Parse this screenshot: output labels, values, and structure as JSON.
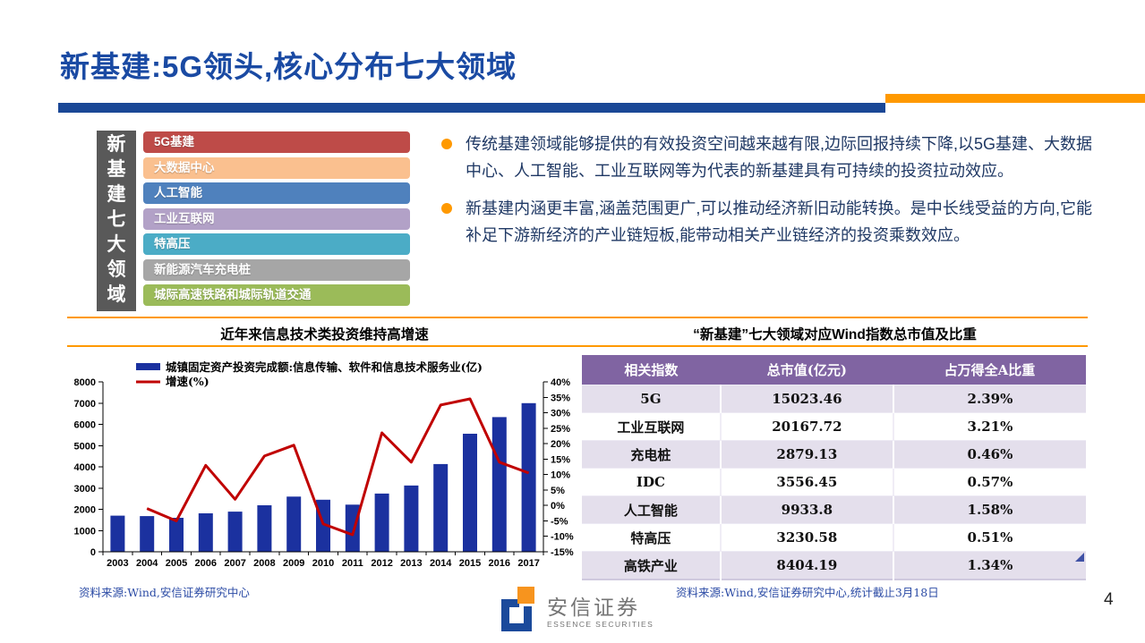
{
  "slide": {
    "title": "新基建:5G领头,核心分布七大领域",
    "page_number": "4"
  },
  "colors": {
    "title_blue": "#1A4AA3",
    "rule_blue": "#1A4796",
    "accent_orange": "#FF9900",
    "body_text_blue": "#1F3864",
    "sidebar_gray": "#595959",
    "chart_bar_blue": "#1B319F",
    "chart_line_red": "#C00000",
    "table_header_purple": "#8064A2",
    "table_row_lavender": "#E4DFEC",
    "logo_blue": "#1B4A9B",
    "logo_orange": "#F7941E"
  },
  "areas": {
    "sidebar_label": "新基建七大领域",
    "items": [
      {
        "label": "5G基建",
        "color": "#BE4B48"
      },
      {
        "label": "大数据中心",
        "color": "#FAC08F"
      },
      {
        "label": "人工智能",
        "color": "#4F81BD"
      },
      {
        "label": "工业互联网",
        "color": "#B2A1C7"
      },
      {
        "label": "特高压",
        "color": "#4BACC6"
      },
      {
        "label": "新能源汽车充电桩",
        "color": "#A6A6A6"
      },
      {
        "label": "城际高速铁路和城际轨道交通",
        "color": "#9BBB59"
      }
    ]
  },
  "bullets": [
    "传统基建领域能够提供的有效投资空间越来越有限,边际回报持续下降,以5G基建、大数据中心、人工智能、工业互联网等为代表的新基建具有可持续的投资拉动效应。",
    "新基建内涵更丰富,涵盖范围更广,可以推动经济新旧动能转换。是中长线受益的方向,它能补足下游新经济的产业链短板,能带动相关产业链经济的投资乘数效应。"
  ],
  "sections": {
    "left_title": "近年来信息技术类投资维持高增速",
    "right_title": "“新基建”七大领域对应Wind指数总市值及比重"
  },
  "chart_data": {
    "type": "bar+line",
    "title": "近年来信息技术类投资维持高增速",
    "categories": [
      "2003",
      "2004",
      "2005",
      "2006",
      "2007",
      "2008",
      "2009",
      "2010",
      "2011",
      "2012",
      "2013",
      "2014",
      "2015",
      "2016",
      "2017"
    ],
    "series": [
      {
        "name": "城镇固定资产投资完成额:信息传输、软件和信息技术服务业(亿)",
        "type": "bar",
        "axis": "left",
        "color": "#1B319F",
        "values": [
          1700,
          1680,
          1600,
          1810,
          1890,
          2190,
          2600,
          2450,
          2220,
          2740,
          3120,
          4130,
          5560,
          6340,
          7000
        ]
      },
      {
        "name": "增速(%)",
        "type": "line",
        "axis": "right",
        "color": "#C00000",
        "values": [
          null,
          -1,
          -5,
          13,
          2,
          16,
          19.5,
          -6,
          -9.5,
          23.5,
          14,
          32.5,
          34.5,
          14,
          10.5
        ]
      }
    ],
    "left_axis": {
      "min": 0,
      "max": 8000,
      "step": 1000,
      "suffix": ""
    },
    "right_axis": {
      "min": -15,
      "max": 40,
      "step": 5,
      "suffix": "%"
    },
    "grid": false,
    "legend_position": "top-left"
  },
  "table": {
    "headers": [
      "相关指数",
      "总市值(亿元)",
      "占万得全A比重"
    ],
    "rows": [
      [
        "5G",
        "15023.46",
        "2.39%"
      ],
      [
        "工业互联网",
        "20167.72",
        "3.21%"
      ],
      [
        "充电桩",
        "2879.13",
        "0.46%"
      ],
      [
        "IDC",
        "3556.45",
        "0.57%"
      ],
      [
        "人工智能",
        "9933.8",
        "1.58%"
      ],
      [
        "特高压",
        "3230.58",
        "0.51%"
      ],
      [
        "高铁产业",
        "8404.19",
        "1.34%"
      ]
    ]
  },
  "footer": {
    "left_source": "资料来源:Wind,安信证券研究中心",
    "right_source": "资料来源:Wind,安信证券研究中心,统计截止3月18日",
    "logo_cn": "安信证券",
    "logo_en": "ESSENCE SECURITIES"
  }
}
